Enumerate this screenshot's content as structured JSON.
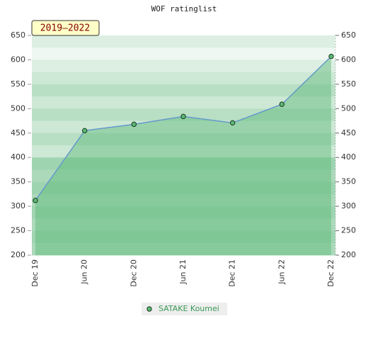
{
  "chart_data": {
    "type": "area",
    "title": "WOF ratinglist",
    "period_label": "2019–2022",
    "categories": [
      "Dec 19",
      "Jun 20",
      "Dec 20",
      "Jun 21",
      "Dec 21",
      "Jun 22",
      "Dec 22"
    ],
    "series": [
      {
        "name": "SATAKE Koumei",
        "color": "#6699cc",
        "fill": "#5cb878",
        "values": [
          312,
          455,
          468,
          484,
          471,
          509,
          607
        ]
      }
    ],
    "ylim": [
      200,
      650
    ],
    "yticks": [
      200,
      250,
      300,
      350,
      400,
      450,
      500,
      550,
      600,
      650
    ],
    "y2lim": [
      200,
      650
    ],
    "y2ticks": [
      200,
      250,
      300,
      350,
      400,
      450,
      500,
      550,
      600,
      650
    ]
  }
}
